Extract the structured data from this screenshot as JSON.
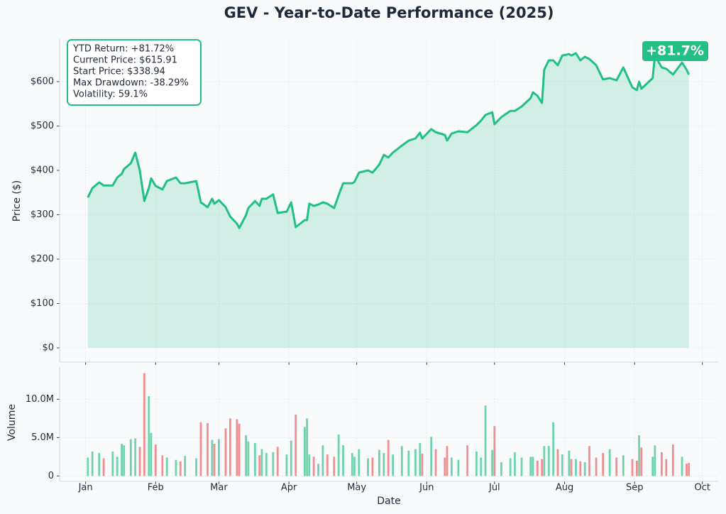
{
  "chart_data": [
    {
      "type": "line",
      "title": "GEV - Year-to-Date Performance (2025)",
      "ylabel": "Price ($)",
      "xlim": [
        -10.5,
        281
      ],
      "xticks": [
        {
          "value": 1,
          "label": "Jan"
        },
        {
          "value": 32,
          "label": "Feb"
        },
        {
          "value": 60,
          "label": "Mar"
        },
        {
          "value": 91,
          "label": "Apr"
        },
        {
          "value": 121,
          "label": "May"
        },
        {
          "value": 152,
          "label": "Jun"
        },
        {
          "value": 182,
          "label": "Jul"
        },
        {
          "value": 213,
          "label": "Aug"
        },
        {
          "value": 244,
          "label": "Sep"
        },
        {
          "value": 274,
          "label": "Oct"
        }
      ],
      "ylim": [
        -32,
        696
      ],
      "yticks": [
        {
          "value": 0,
          "label": "$0"
        },
        {
          "value": 100,
          "label": "$100"
        },
        {
          "value": 200,
          "label": "$200"
        },
        {
          "value": 300,
          "label": "$300"
        },
        {
          "value": 400,
          "label": "$400"
        },
        {
          "value": 500,
          "label": "$500"
        },
        {
          "value": 600,
          "label": "$600"
        }
      ],
      "grid": true,
      "x": [
        2,
        4,
        7,
        9,
        13,
        15,
        17,
        18,
        21,
        23,
        25,
        27,
        29,
        30,
        32,
        35,
        37,
        41,
        43,
        45,
        50,
        52,
        55,
        57,
        58,
        60,
        63,
        65,
        68,
        69,
        72,
        73,
        76,
        78,
        79,
        81,
        84,
        86,
        90,
        92,
        94,
        98,
        99,
        100,
        102,
        104,
        106,
        108,
        111,
        113,
        115,
        119,
        120,
        122,
        126,
        128,
        131,
        133,
        135,
        137,
        141,
        144,
        147,
        149,
        150,
        154,
        156,
        160,
        161,
        163,
        166,
        170,
        174,
        176,
        178,
        181,
        182,
        185,
        189,
        191,
        194,
        198,
        199,
        201,
        203,
        204,
        206,
        208,
        210,
        212,
        215,
        216,
        218,
        220,
        222,
        224,
        227,
        230,
        233,
        236,
        239,
        243,
        245,
        246,
        247,
        252,
        253,
        256,
        258,
        261,
        265,
        267,
        268
      ],
      "series": [
        {
          "name": "GEV",
          "color": "#22bf87",
          "values": [
            339,
            360,
            373,
            366,
            366,
            384,
            392,
            403,
            416,
            440,
            400,
            331,
            360,
            382,
            365,
            357,
            376,
            384,
            371,
            371,
            376,
            328,
            317,
            336,
            325,
            333,
            317,
            296,
            280,
            270,
            299,
            315,
            331,
            320,
            336,
            336,
            346,
            304,
            307,
            328,
            272,
            288,
            288,
            325,
            320,
            323,
            328,
            325,
            315,
            344,
            371,
            371,
            374,
            395,
            400,
            395,
            413,
            435,
            429,
            440,
            456,
            467,
            472,
            485,
            472,
            493,
            486,
            480,
            467,
            483,
            488,
            486,
            502,
            512,
            525,
            531,
            504,
            520,
            534,
            534,
            544,
            563,
            576,
            568,
            552,
            627,
            648,
            648,
            637,
            659,
            662,
            659,
            664,
            648,
            656,
            651,
            637,
            605,
            608,
            603,
            632,
            587,
            581,
            600,
            584,
            608,
            659,
            632,
            629,
            616,
            643,
            627,
            616
          ]
        }
      ],
      "annotations": [
        "YTD Return: +81.72%",
        "Current Price: $615.91",
        "Start Price: $338.94",
        "Max Drawdown: -38.29%",
        "Volatility: 59.1%"
      ],
      "badge": "+81.7%"
    },
    {
      "type": "bar",
      "ylabel": "Volume",
      "xlabel": "Date",
      "up_color": "#6fd3ad",
      "down_color": "#ef8f8f",
      "ylim": [
        -700000,
        14200000
      ],
      "yticks": [
        0,
        {
          "value": 5000000,
          "label": "5.0M"
        },
        {
          "value": 10000000,
          "label": "10.0M"
        }
      ],
      "grid": true,
      "values": [
        2400000.0,
        3200000.0,
        3000000.0,
        2300000.0,
        3200000.0,
        2500000.0,
        4200000.0,
        4000000.0,
        4800000.0,
        4900000.0,
        3800000.0,
        13400000.0,
        10400000.0,
        5600000.0,
        4100000.0,
        2700000.0,
        2400000.0,
        2100000.0,
        1900000.0,
        2600000.0,
        2300000.0,
        7000000.0,
        6900000.0,
        4700000.0,
        4200000.0,
        4800000.0,
        6200000.0,
        7500000.0,
        7400000.0,
        6800000.0,
        5300000.0,
        4500000.0,
        4300000.0,
        2700000.0,
        3500000.0,
        3000000.0,
        3100000.0,
        3800000.0,
        2800000.0,
        4600000.0,
        8000000.0,
        6400000.0,
        7500000.0,
        2800000.0,
        2500000.0,
        1600000.0,
        4000000.0,
        2800000.0,
        2500000.0,
        5400000.0,
        4000000.0,
        3000000.0,
        2500000.0,
        3500000.0,
        2300000.0,
        2400000.0,
        3400000.0,
        3000000.0,
        4700000.0,
        2800000.0,
        3900000.0,
        3300000.0,
        3500000.0,
        4300000.0,
        2900000.0,
        5100000.0,
        3500000.0,
        2400000.0,
        3900000.0,
        2400000.0,
        2100000.0,
        4000000.0,
        3200000.0,
        2400000.0,
        9200000.0,
        3400000.0,
        6500000.0,
        1800000.0,
        2300000.0,
        3100000.0,
        2400000.0,
        2500000.0,
        2500000.0,
        2000000.0,
        2200000.0,
        3900000.0,
        3900000.0,
        7000000.0,
        3500000.0,
        2800000.0,
        3300000.0,
        2200000.0,
        2200000.0,
        1900000.0,
        1800000.0,
        3900000.0,
        2400000.0,
        3000000.0,
        3500000.0,
        2400000.0,
        2700000.0,
        2200000.0,
        2000000.0,
        5300000.0,
        3700000.0,
        2500000.0,
        4000000.0,
        3100000.0,
        2200000.0,
        4100000.0,
        2500000.0,
        1600000.0,
        1700000.0
      ]
    }
  ]
}
